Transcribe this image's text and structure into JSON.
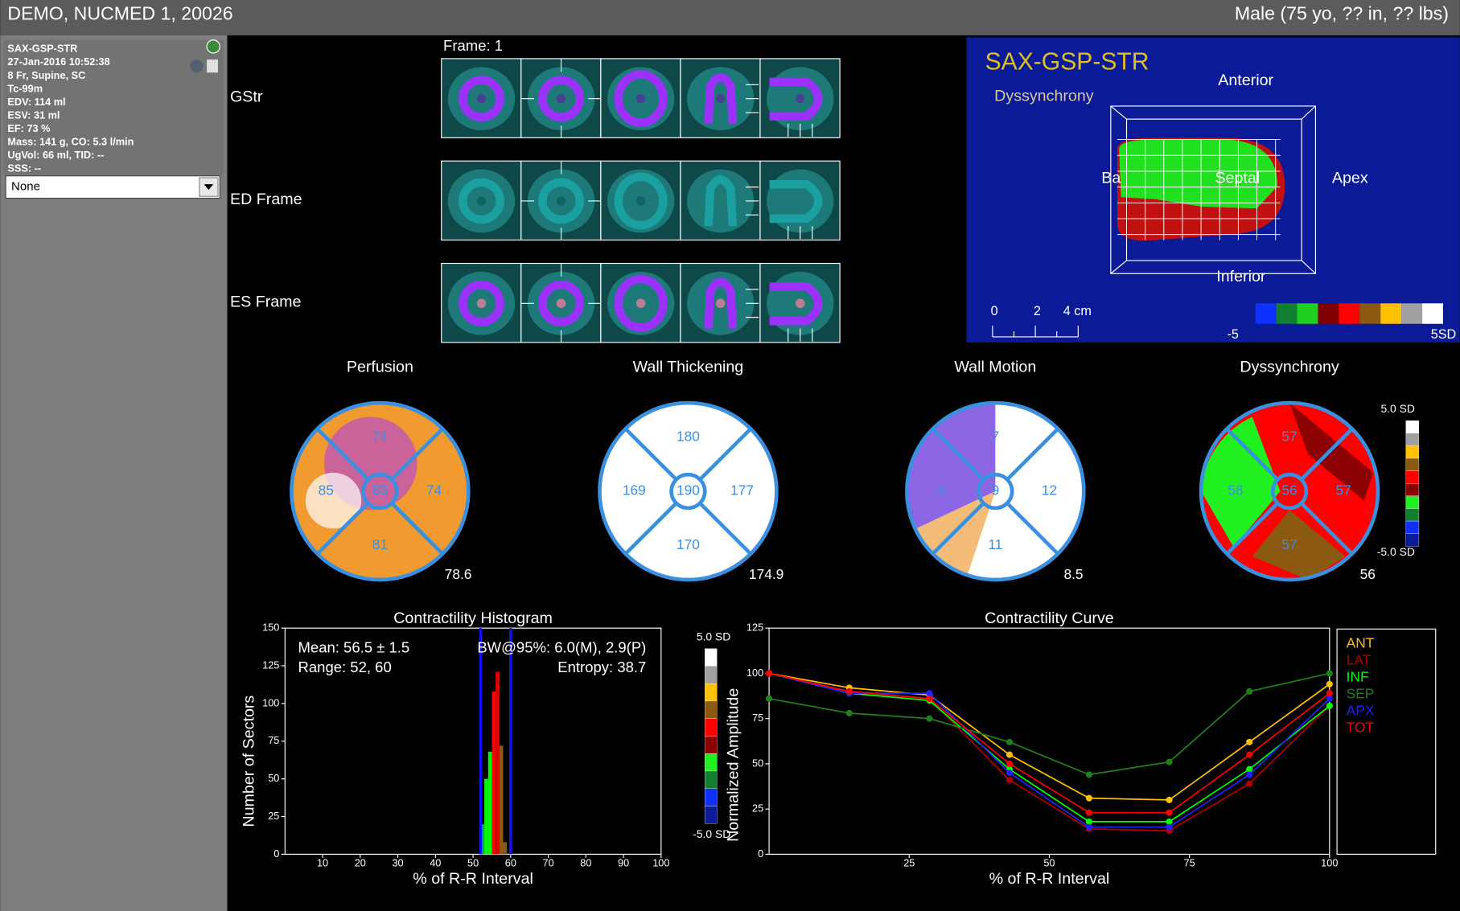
{
  "header": {
    "title": "DEMO, NUCMED 1, 20026",
    "patient": "Male (75 yo, ?? in, ?? lbs)"
  },
  "sidebar": {
    "lines": [
      "SAX-GSP-STR",
      "27-Jan-2016 10:52:38",
      "8 Fr, Supine, SC",
      "Tc-99m",
      "EDV: 114 ml",
      "ESV: 31 ml",
      "EF: 73 %",
      "Mass: 141 g,  CO: 5.3 l/min",
      "UgVol: 66 ml,  TID: --",
      "SSS: --"
    ],
    "dropdown": "None"
  },
  "slices": {
    "frame": "Frame: 1",
    "rows": [
      "GStr",
      "ED Frame",
      "ES Frame"
    ]
  },
  "view3d": {
    "title": "SAX-GSP-STR",
    "subtitle": "Dyssynchrony",
    "anterior": "Anterior",
    "base": "Ba",
    "septal": "Septal",
    "apex": "Apex",
    "inferior": "Inferior",
    "scale": [
      "0",
      "2",
      "4 cm"
    ],
    "bar_min": "-5",
    "bar_max": "5SD"
  },
  "polar_maps": [
    {
      "title": "Perfusion",
      "top": "74",
      "left": "85",
      "center": "83",
      "right": "74",
      "bottom": "81",
      "total": "78.6"
    },
    {
      "title": "Wall Thickening",
      "top": "180",
      "left": "169",
      "center": "190",
      "right": "177",
      "bottom": "170",
      "total": "174.9"
    },
    {
      "title": "Wall Motion",
      "top": "7",
      "left": "4",
      "center": "9",
      "right": "12",
      "bottom": "11",
      "total": "8.5"
    },
    {
      "title": "Dyssynchrony",
      "top": "57",
      "left": "58",
      "center": "56",
      "right": "57",
      "bottom": "57",
      "total": "56"
    }
  ],
  "polar_scale": {
    "max": "5.0 SD",
    "min": "-5.0 SD"
  },
  "chart_data": [
    {
      "type": "histogram",
      "title": "Contractility Histogram",
      "x_label": "% of R-R Interval",
      "y_label": "Number of Sectors",
      "annotations": [
        "Mean: 56.5 ± 1.5",
        "Range: 52, 60",
        "BW@95%: 6.0(M), 2.9(P)",
        "Entropy: 38.7"
      ],
      "bins": [
        52,
        53,
        54,
        55,
        56,
        57,
        58,
        59
      ],
      "values": [
        20,
        50,
        68,
        108,
        121,
        72,
        8
      ],
      "colors": [
        "#00b050",
        "#00ff00",
        "#00ff00",
        "#ff0000",
        "#e00000",
        "#8b5a10",
        "#8b5a10"
      ],
      "range_lines": [
        52,
        60
      ],
      "range_color": "#1010ff",
      "xlim": [
        0,
        100
      ],
      "xticks": [
        10,
        20,
        30,
        40,
        50,
        60,
        70,
        80,
        90,
        100
      ],
      "ylim": [
        0,
        150
      ],
      "yticks": [
        0,
        25,
        50,
        75,
        100,
        125,
        150
      ],
      "scale_max": "5.0 SD",
      "scale_min": "-5.0 SD"
    },
    {
      "type": "line",
      "title": "Contractility Curve",
      "x_label": "% of R-R Interval",
      "y_label": "Normalized Amplitude",
      "x": [
        0,
        14.3,
        28.6,
        42.9,
        57.1,
        71.4,
        85.7,
        100
      ],
      "series": [
        {
          "name": "ANT",
          "color": "#ffc000",
          "values": [
            100,
            92,
            88,
            55,
            31,
            30,
            62,
            94
          ]
        },
        {
          "name": "LAT",
          "color": "#b00000",
          "values": [
            100,
            90,
            86,
            41,
            14,
            13,
            39,
            82
          ]
        },
        {
          "name": "INF",
          "color": "#00ff00",
          "values": [
            100,
            89,
            85,
            47,
            18,
            18,
            47,
            82
          ]
        },
        {
          "name": "SEP",
          "color": "#208020",
          "values": [
            86,
            78,
            75,
            62,
            44,
            51,
            90,
            100
          ]
        },
        {
          "name": "APX",
          "color": "#2020ff",
          "values": [
            100,
            89,
            89,
            45,
            15,
            15,
            44,
            86
          ]
        },
        {
          "name": "TOT",
          "color": "#ff0000",
          "values": [
            100,
            90,
            86,
            50,
            23,
            23,
            55,
            89
          ]
        }
      ],
      "xlim": [
        0,
        100
      ],
      "xticks": [
        25,
        50,
        75,
        100
      ],
      "ylim": [
        0,
        125
      ],
      "yticks": [
        0,
        25,
        50,
        75,
        100,
        125
      ]
    }
  ]
}
